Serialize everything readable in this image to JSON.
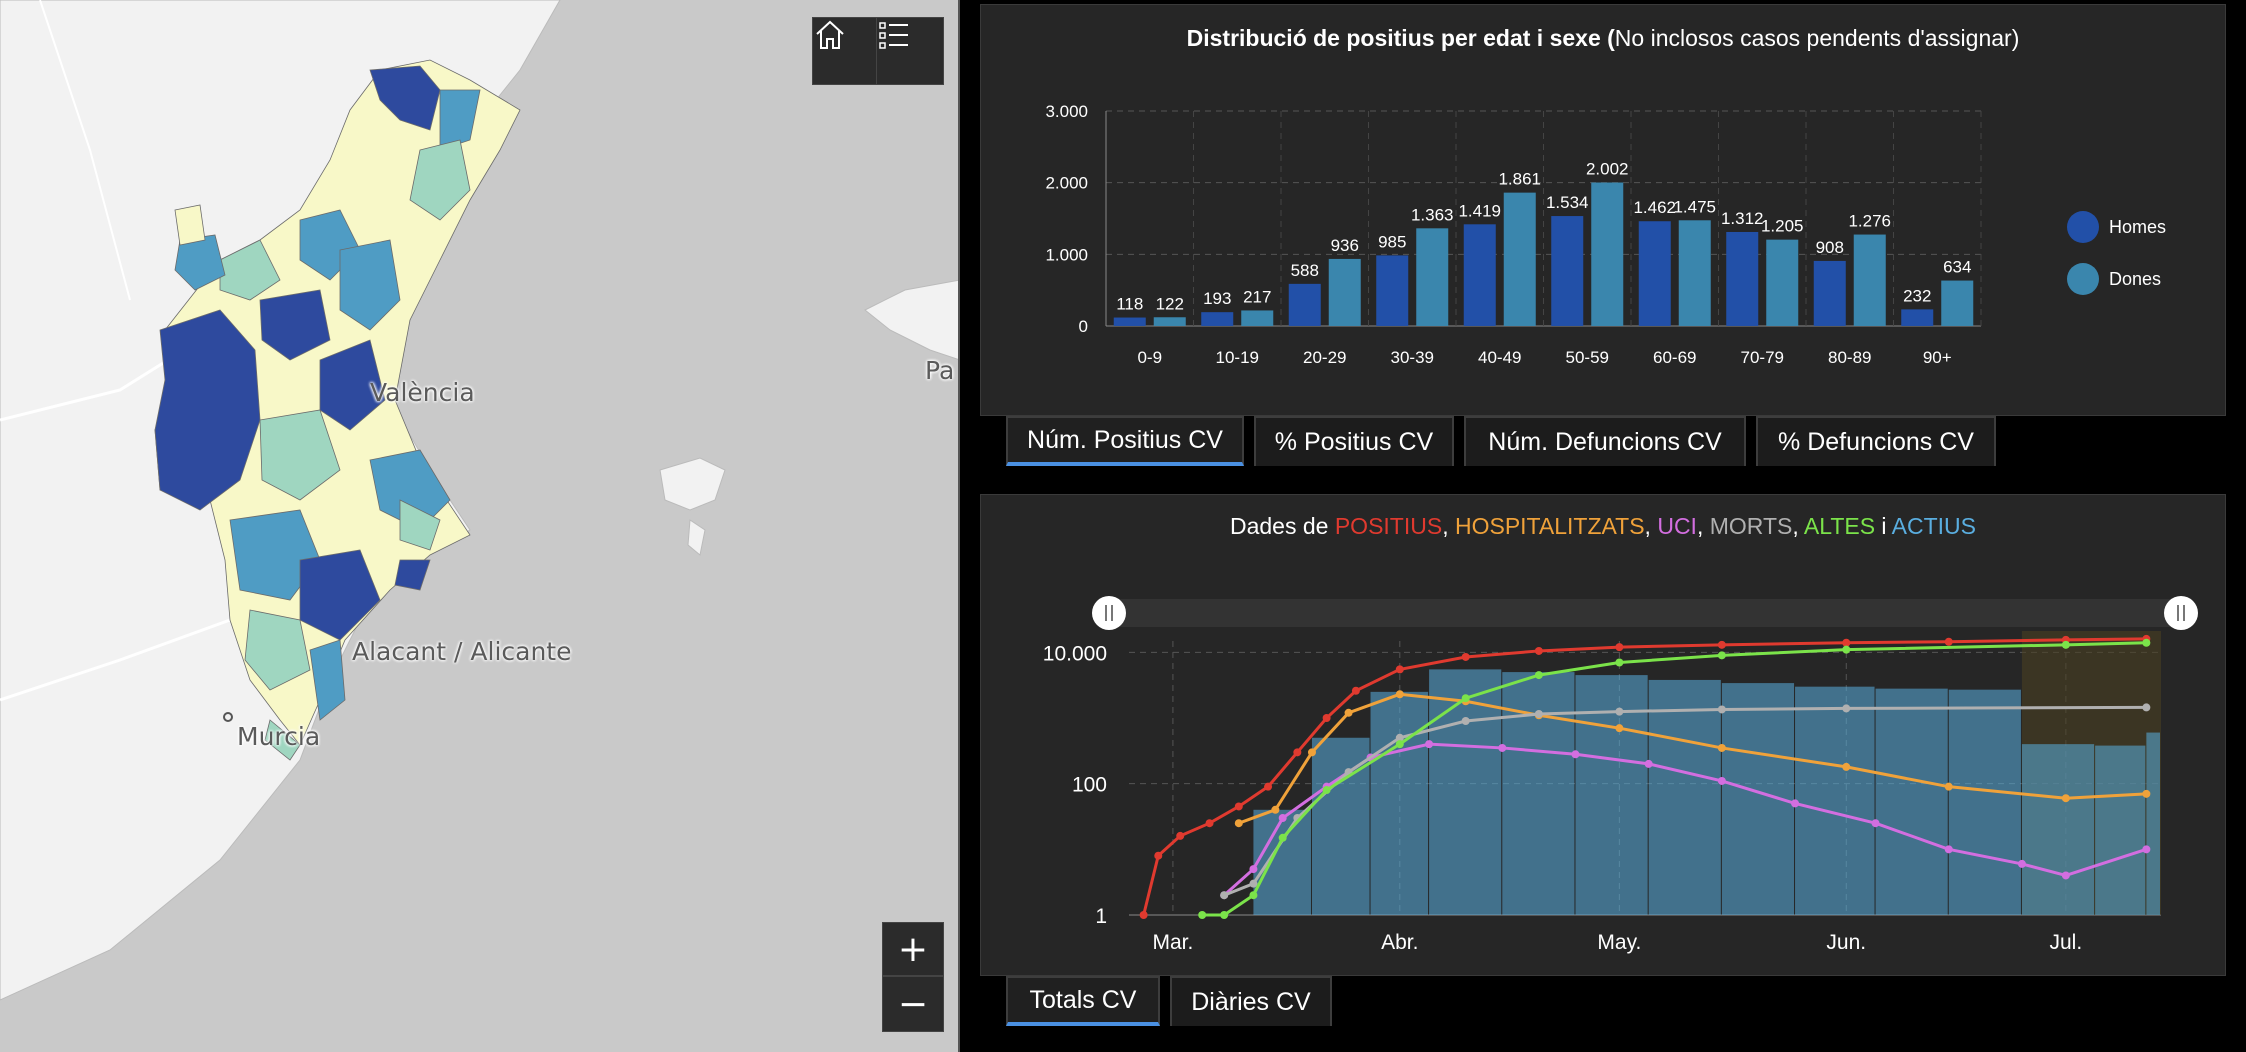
{
  "map": {
    "labels": [
      {
        "key": "valencia",
        "text": "València"
      },
      {
        "key": "alacant",
        "text": "Alacant / Alicante"
      },
      {
        "key": "murcia",
        "text": "Murcia"
      },
      {
        "key": "pa",
        "text": "Pa"
      }
    ],
    "buttons": {
      "home_icon": "home-icon",
      "list_icon": "legend-list-icon",
      "zoom_in": "+",
      "zoom_out": "−"
    },
    "colors": {
      "water": "#c9c9c9",
      "land": "#f2f2f2",
      "choro_dark": "#2e4a9e",
      "choro_mid": "#4f9cc4",
      "choro_light": "#9fd6c0",
      "choro_pale": "#fbfbd0"
    }
  },
  "age_chart": {
    "title_bold": "Distribució de positius per edat i sexe (",
    "title_rest": "No inclosos casos pendents d'assignar)",
    "tabs": [
      "Núm. Positius CV",
      "% Positius CV",
      "Núm. Defuncions CV",
      "% Defuncions CV"
    ],
    "active_tab": 0
  },
  "time_chart": {
    "title_prefix": "Dades de ",
    "title_parts": [
      {
        "text": "POSITIUS",
        "color": "#e03a2f"
      },
      {
        "text": ", ",
        "color": "#ffffff"
      },
      {
        "text": "HOSPITALITZATS",
        "color": "#f0a23a"
      },
      {
        "text": ", ",
        "color": "#ffffff"
      },
      {
        "text": "UCI",
        "color": "#d36ee0"
      },
      {
        "text": ", ",
        "color": "#ffffff"
      },
      {
        "text": "MORTS",
        "color": "#b0b0b0"
      },
      {
        "text": ", ",
        "color": "#ffffff"
      },
      {
        "text": "ALTES",
        "color": "#7be34a"
      },
      {
        "text": " i ",
        "color": "#ffffff"
      },
      {
        "text": "ACTIUS",
        "color": "#5aaee0"
      }
    ],
    "tabs": [
      "Totals CV",
      "Diàries CV"
    ],
    "active_tab": 0
  },
  "chart_data": [
    {
      "type": "bar",
      "title": "Distribució de positius per edat i sexe (No inclosos casos pendents d'assignar)",
      "categories": [
        "0-9",
        "10-19",
        "20-29",
        "30-39",
        "40-49",
        "50-59",
        "60-69",
        "70-79",
        "80-89",
        "90+"
      ],
      "series": [
        {
          "name": "Homes",
          "color": "#2250a8",
          "values": [
            118,
            193,
            588,
            985,
            1419,
            1534,
            1462,
            1312,
            908,
            232
          ],
          "labels": [
            "118",
            "193",
            "588",
            "985",
            "1.419",
            "1.534",
            "1.462",
            "1.312",
            "908",
            "232"
          ]
        },
        {
          "name": "Dones",
          "color": "#3a86ad",
          "values": [
            122,
            217,
            936,
            1363,
            1861,
            2002,
            1475,
            1205,
            1276,
            634
          ],
          "labels": [
            "122",
            "217",
            "936",
            "1.363",
            "1.861",
            "2.002",
            "1.475",
            "1.205",
            "1.276",
            "634"
          ]
        }
      ],
      "ylim": [
        0,
        3000
      ],
      "yticks": [
        0,
        1000,
        2000,
        3000
      ],
      "ytick_labels": [
        "0",
        "1.000",
        "2.000",
        "3.000"
      ],
      "grid": true,
      "legend": "right"
    },
    {
      "type": "line",
      "title": "Dades de POSITIUS, HOSPITALITZATS, UCI, MORTS, ALTES i ACTIUS",
      "y_scale": "log",
      "ylim": [
        1,
        30000
      ],
      "yticks": [
        1,
        100,
        10000
      ],
      "ytick_labels": [
        "1",
        "100",
        "10.000"
      ],
      "xlim": [
        "2020-02-24",
        "2020-07-14"
      ],
      "xticks": [
        "2020-03-01",
        "2020-04-01",
        "2020-05-01",
        "2020-06-01",
        "2020-07-01"
      ],
      "xtick_labels": [
        "Mar.",
        "Abr.",
        "May.",
        "Jun.",
        "Jul."
      ],
      "series": [
        {
          "name": "POSITIUS",
          "color": "#e03a2f",
          "x": [
            "2020-02-26",
            "2020-02-28",
            "2020-03-02",
            "2020-03-06",
            "2020-03-10",
            "2020-03-14",
            "2020-03-18",
            "2020-03-22",
            "2020-03-26",
            "2020-04-01",
            "2020-04-10",
            "2020-04-20",
            "2020-05-01",
            "2020-05-15",
            "2020-06-01",
            "2020-06-15",
            "2020-07-01",
            "2020-07-12"
          ],
          "y": [
            1,
            8,
            16,
            25,
            45,
            90,
            300,
            1000,
            2600,
            5500,
            8500,
            10500,
            12000,
            13000,
            14000,
            14500,
            15500,
            16000
          ]
        },
        {
          "name": "HOSPITALITZATS",
          "color": "#f0a23a",
          "x": [
            "2020-03-10",
            "2020-03-15",
            "2020-03-20",
            "2020-03-25",
            "2020-04-01",
            "2020-04-10",
            "2020-04-20",
            "2020-05-01",
            "2020-05-15",
            "2020-06-01",
            "2020-06-15",
            "2020-07-01",
            "2020-07-12"
          ],
          "y": [
            25,
            40,
            300,
            1200,
            2300,
            1800,
            1100,
            700,
            350,
            180,
            90,
            60,
            70
          ]
        },
        {
          "name": "UCI",
          "color": "#d36ee0",
          "x": [
            "2020-03-08",
            "2020-03-12",
            "2020-03-16",
            "2020-03-22",
            "2020-03-28",
            "2020-04-05",
            "2020-04-15",
            "2020-04-25",
            "2020-05-05",
            "2020-05-15",
            "2020-05-25",
            "2020-06-05",
            "2020-06-15",
            "2020-06-25",
            "2020-07-01",
            "2020-07-12"
          ],
          "y": [
            2,
            5,
            30,
            90,
            250,
            400,
            350,
            280,
            200,
            110,
            50,
            25,
            10,
            6,
            4,
            10
          ]
        },
        {
          "name": "MORTS",
          "color": "#b0b0b0",
          "x": [
            "2020-03-08",
            "2020-03-12",
            "2020-03-18",
            "2020-03-25",
            "2020-04-01",
            "2020-04-10",
            "2020-04-20",
            "2020-05-01",
            "2020-05-15",
            "2020-06-01",
            "2020-07-12"
          ],
          "y": [
            2,
            3,
            30,
            150,
            500,
            900,
            1150,
            1250,
            1350,
            1400,
            1450
          ]
        },
        {
          "name": "ALTES",
          "color": "#7be34a",
          "x": [
            "2020-03-05",
            "2020-03-08",
            "2020-03-12",
            "2020-03-16",
            "2020-03-22",
            "2020-04-01",
            "2020-04-10",
            "2020-04-20",
            "2020-05-01",
            "2020-05-15",
            "2020-06-01",
            "2020-07-01",
            "2020-07-12"
          ],
          "y": [
            1,
            1,
            2,
            15,
            80,
            400,
            2000,
            4500,
            7000,
            9000,
            11000,
            13000,
            14000
          ]
        },
        {
          "name": "ACTIUS",
          "color": "#5aaee0",
          "type": "bar",
          "x": [
            "2020-03-05",
            "2020-03-12",
            "2020-03-20",
            "2020-03-28",
            "2020-04-05",
            "2020-04-15",
            "2020-04-25",
            "2020-05-05",
            "2020-05-15",
            "2020-05-25",
            "2020-06-05",
            "2020-06-15",
            "2020-06-25",
            "2020-07-05",
            "2020-07-12"
          ],
          "y": [
            1,
            40,
            500,
            2500,
            5500,
            5000,
            4500,
            3800,
            3400,
            3000,
            2800,
            2700,
            400,
            380,
            600
          ]
        }
      ],
      "grid": true
    }
  ]
}
